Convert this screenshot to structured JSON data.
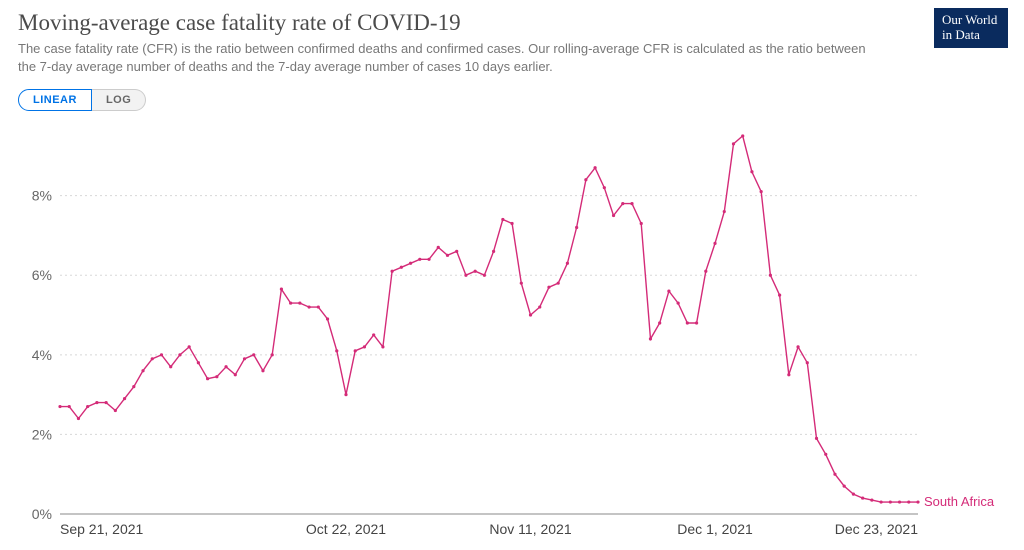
{
  "header": {
    "title": "Moving-average case fatality rate of COVID-19",
    "subtitle": "The case fatality rate (CFR) is the ratio between confirmed deaths and confirmed cases. Our rolling-average CFR is calculated as the ratio between the 7-day average number of deaths and the 7-day average number of cases 10 days earlier.",
    "logo_line1": "Our World",
    "logo_line2": "in Data"
  },
  "scale_toggle": {
    "linear": "LINEAR",
    "log": "LOG",
    "active": "linear"
  },
  "chart": {
    "type": "line",
    "background_color": "#ffffff",
    "grid_color": "#d8d8d8",
    "axis_color": "#888888",
    "tick_label_color": "#666666",
    "x_tick_label_color": "#444444",
    "title_fontsize": 23,
    "tick_fontsize": 14,
    "x_domain": [
      0,
      93
    ],
    "y_domain": [
      0,
      9.8
    ],
    "y_ticks": [
      {
        "v": 0,
        "label": "0%"
      },
      {
        "v": 2,
        "label": "2%"
      },
      {
        "v": 4,
        "label": "4%"
      },
      {
        "v": 6,
        "label": "6%"
      },
      {
        "v": 8,
        "label": "8%"
      }
    ],
    "x_ticks": [
      {
        "v": 0,
        "label": "Sep 21, 2021"
      },
      {
        "v": 31,
        "label": "Oct 22, 2021"
      },
      {
        "v": 51,
        "label": "Nov 11, 2021"
      },
      {
        "v": 71,
        "label": "Dec 1, 2021"
      },
      {
        "v": 93,
        "label": "Dec 23, 2021"
      }
    ],
    "series": [
      {
        "name": "South Africa",
        "label": "South Africa",
        "color": "#d42b78",
        "line_width": 1.4,
        "marker_radius": 1.6,
        "values": [
          2.7,
          2.7,
          2.4,
          2.7,
          2.8,
          2.8,
          2.6,
          2.9,
          3.2,
          3.6,
          3.9,
          4.0,
          3.7,
          4.0,
          4.2,
          3.8,
          3.4,
          3.45,
          3.7,
          3.5,
          3.9,
          4.0,
          3.6,
          4.0,
          5.65,
          5.3,
          5.3,
          5.2,
          5.2,
          4.9,
          4.1,
          3.0,
          4.1,
          4.2,
          4.5,
          4.2,
          6.1,
          6.2,
          6.3,
          6.4,
          6.4,
          6.7,
          6.5,
          6.6,
          6.0,
          6.1,
          6.0,
          6.6,
          7.4,
          7.3,
          5.8,
          5.0,
          5.2,
          5.7,
          5.8,
          6.3,
          7.2,
          8.4,
          8.7,
          8.2,
          7.5,
          7.8,
          7.8,
          7.3,
          4.4,
          4.8,
          5.6,
          5.3,
          4.8,
          4.8,
          6.1,
          6.8,
          7.6,
          9.3,
          9.5,
          8.6,
          8.1,
          6.0,
          5.5,
          3.5,
          4.2,
          3.8,
          1.9,
          1.5,
          1.0,
          0.7,
          0.5,
          0.4,
          0.35,
          0.3,
          0.3,
          0.3,
          0.3,
          0.3
        ]
      }
    ]
  }
}
